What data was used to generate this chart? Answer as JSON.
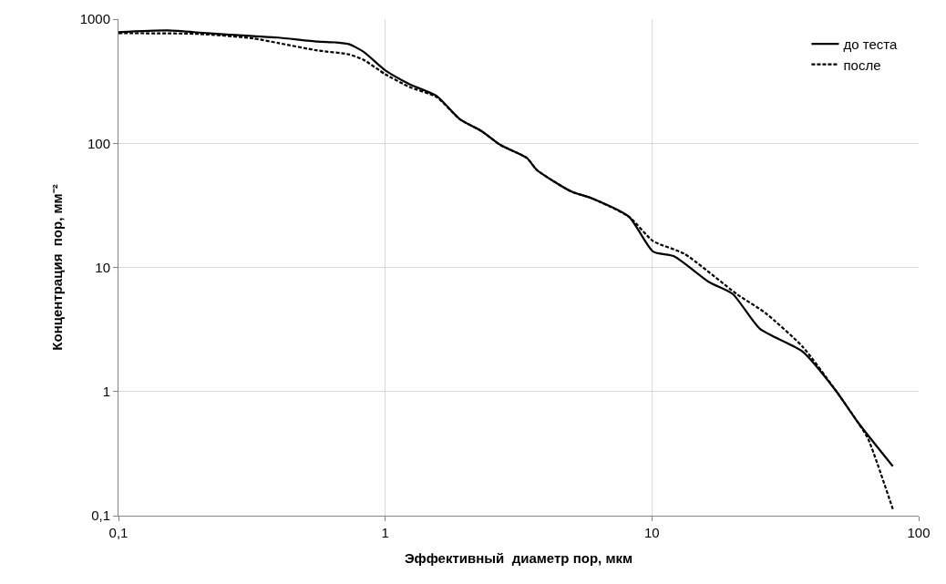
{
  "chart_data": {
    "type": "line",
    "xlabel": "Эффективный  диаметр пор, мкм",
    "ylabel": "Концентрация  пор, мм⁻²",
    "log": "xy",
    "grid": true,
    "legend": "top right",
    "marker": "none",
    "xlim": [
      0.1,
      100
    ],
    "ylim": [
      0.1,
      1000
    ],
    "xticks": [
      {
        "value": 0.1,
        "label": "0,1"
      },
      1,
      10,
      100
    ],
    "yticks": [
      {
        "value": 0.1,
        "label": "0,1"
      },
      1,
      10,
      100,
      1000
    ],
    "series": [
      {
        "name": "до теста",
        "color": "#000000",
        "line_style": "solid",
        "x": [
          0.1,
          0.153,
          0.215,
          0.32,
          0.396,
          0.556,
          0.65,
          0.73,
          0.83,
          1.0,
          1.23,
          1.56,
          1.9,
          2.3,
          2.7,
          3.4,
          3.7,
          4.97,
          5.96,
          8.2,
          10.1,
          12.1,
          16.4,
          20.1,
          25.4,
          36.7,
          49.2,
          59,
          80
        ],
        "values": [
          785,
          810,
          770,
          730,
          710,
          660,
          650,
          630,
          545,
          387,
          300,
          240,
          157,
          125,
          97,
          76,
          61,
          41,
          36,
          25.6,
          13.4,
          12.3,
          7.6,
          6.1,
          3.2,
          2.1,
          1.0,
          0.57,
          0.25
        ]
      },
      {
        "name": "после",
        "color": "#000000",
        "line_style": "dashed",
        "x": [
          0.1,
          0.2,
          0.32,
          0.4,
          0.556,
          0.73,
          0.83,
          1.0,
          1.23,
          1.56,
          1.9,
          2.3,
          2.7,
          3.4,
          3.7,
          4.97,
          5.96,
          8.2,
          10.1,
          13.2,
          20.8,
          26.6,
          36.7,
          49.2,
          59,
          64.5,
          80
        ],
        "values": [
          770,
          760,
          700,
          640,
          560,
          520,
          470,
          360,
          285,
          235,
          157,
          125,
          97,
          76,
          61,
          41,
          36,
          25.6,
          16.3,
          12.9,
          6.1,
          4.3,
          2.3,
          1.0,
          0.57,
          0.42,
          0.113
        ]
      }
    ]
  }
}
